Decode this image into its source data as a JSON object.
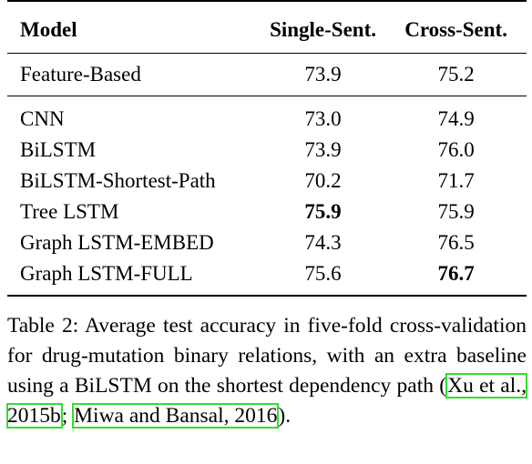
{
  "table": {
    "headers": {
      "model": "Model",
      "single": "Single-Sent.",
      "cross": "Cross-Sent."
    },
    "baseline": {
      "model": "Feature-Based",
      "single": "73.9",
      "cross": "75.2"
    },
    "rows": [
      {
        "model": "CNN",
        "single": "73.0",
        "cross": "74.9",
        "single_bold": false,
        "cross_bold": false
      },
      {
        "model": "BiLSTM",
        "single": "73.9",
        "cross": "76.0",
        "single_bold": false,
        "cross_bold": false
      },
      {
        "model": "BiLSTM-Shortest-Path",
        "single": "70.2",
        "cross": "71.7",
        "single_bold": false,
        "cross_bold": false
      },
      {
        "model": "Tree LSTM",
        "single": "75.9",
        "cross": "75.9",
        "single_bold": true,
        "cross_bold": false
      },
      {
        "model": "Graph LSTM-EMBED",
        "single": "74.3",
        "cross": "76.5",
        "single_bold": false,
        "cross_bold": false
      },
      {
        "model": "Graph LSTM-FULL",
        "single": "75.6",
        "cross": "76.7",
        "single_bold": false,
        "cross_bold": true
      }
    ]
  },
  "caption": {
    "text": "Table 2: Average test accuracy in five-fold cross-validation for drug-mutation binary relations, with an extra baseline using a BiLSTM on the shortest dependency path (",
    "cite1": "Xu et al., 2015b",
    "sep": "; ",
    "cite2": "Miwa and Bansal, 2016",
    "end": ")."
  },
  "colors": {
    "citation_box": "#2fe02f"
  }
}
